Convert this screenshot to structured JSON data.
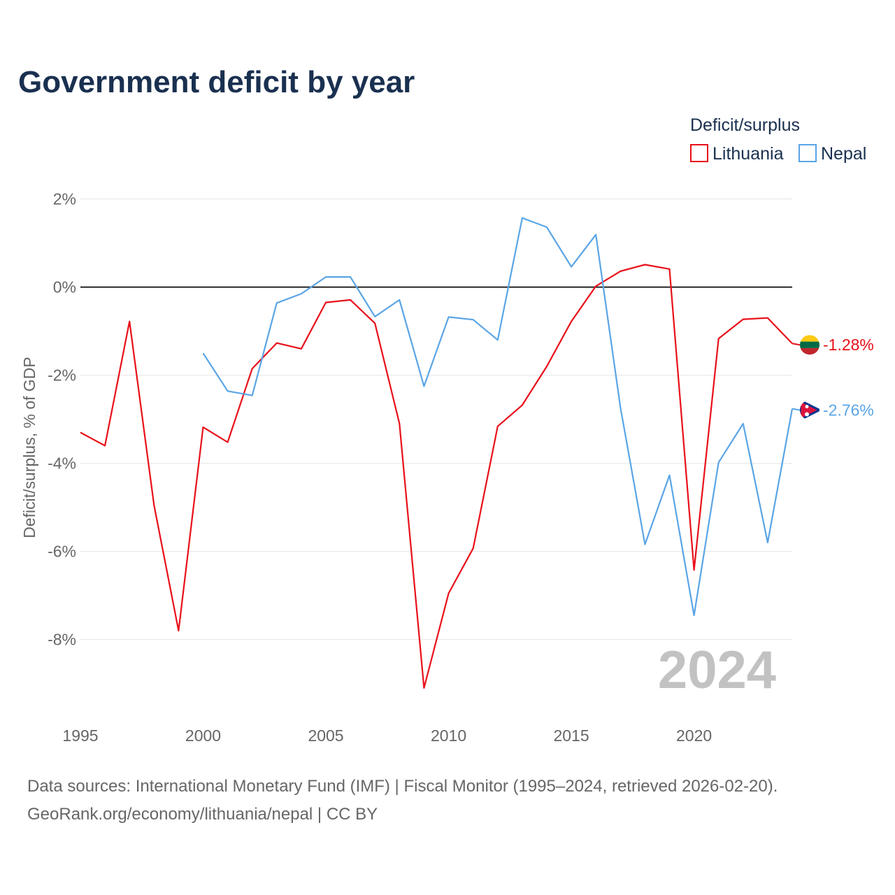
{
  "chart_data": {
    "type": "line",
    "title": "Government deficit by year",
    "legend": {
      "title": "Deficit/surplus",
      "placement": "top-right"
    },
    "xlabel": "",
    "ylabel": "Deficit/surplus, % of GDP",
    "xlim": [
      1995,
      2024
    ],
    "ylim": [
      -9.8,
      2.2
    ],
    "x_ticks": [
      1995,
      2000,
      2005,
      2010,
      2015,
      2020
    ],
    "x_tick_labels": [
      "1995",
      "2000",
      "2005",
      "2010",
      "2015",
      "2020"
    ],
    "y_ticks": [
      2,
      0,
      -2,
      -4,
      -6,
      -8
    ],
    "y_tick_labels": [
      "2%",
      "0%",
      "-2%",
      "-4%",
      "-6%",
      "-8%"
    ],
    "highlight_year": "2024",
    "series": [
      {
        "name": "Lithuania",
        "color": "#e8101a",
        "end_label": "-1.28%",
        "flag": "lithuania-flag-icon",
        "x": [
          1995,
          1996,
          1997,
          1998,
          1999,
          2000,
          2001,
          2002,
          2003,
          2004,
          2005,
          2006,
          2007,
          2008,
          2009,
          2010,
          2011,
          2012,
          2013,
          2014,
          2015,
          2016,
          2017,
          2018,
          2019,
          2020,
          2021,
          2022,
          2023,
          2024
        ],
        "values": [
          -3.3,
          -3.6,
          -0.78,
          -4.95,
          -7.8,
          -3.18,
          -3.52,
          -1.85,
          -1.27,
          -1.4,
          -0.35,
          -0.29,
          -0.82,
          -3.1,
          -9.1,
          -6.95,
          -5.93,
          -3.16,
          -2.68,
          -1.8,
          -0.78,
          0.02,
          0.36,
          0.51,
          0.41,
          -6.42,
          -1.17,
          -0.73,
          -0.7,
          -1.28
        ]
      },
      {
        "name": "Nepal",
        "color": "#5aa5e6",
        "end_label": "-2.76%",
        "flag": "nepal-flag-icon",
        "x": [
          2000,
          2001,
          2002,
          2003,
          2004,
          2005,
          2006,
          2007,
          2008,
          2009,
          2010,
          2011,
          2012,
          2013,
          2014,
          2015,
          2016,
          2017,
          2018,
          2019,
          2020,
          2021,
          2022,
          2023,
          2024
        ],
        "values": [
          -1.5,
          -2.36,
          -2.46,
          -0.36,
          -0.15,
          0.23,
          0.23,
          -0.67,
          -0.29,
          -2.25,
          -0.68,
          -0.74,
          -1.2,
          1.57,
          1.36,
          0.46,
          1.19,
          -2.73,
          -5.84,
          -4.27,
          -7.45,
          -3.98,
          -3.1,
          -5.8,
          -2.76
        ]
      }
    ]
  },
  "footer": {
    "source_line": "Data sources: International Monetary Fund (IMF) | Fiscal Monitor (1995–2024, retrieved 2026-02-20).",
    "attribution_line": "GeoRank.org/economy/lithuania/nepal | CC BY"
  }
}
